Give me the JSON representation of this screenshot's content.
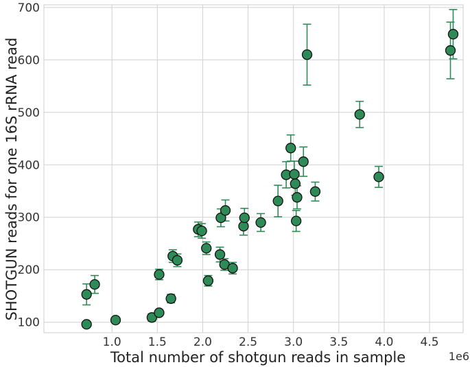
{
  "chart_data": {
    "type": "scatter",
    "title": "",
    "xlabel": "Total number of shotgun reads in sample",
    "ylabel": "SHOTGUN reads for one 16S rRNA read",
    "x_scale_label": "1e6",
    "xlim": [
      0.25,
      4.87
    ],
    "ylim": [
      80,
      705
    ],
    "x_ticks": [
      1.0,
      1.5,
      2.0,
      2.5,
      3.0,
      3.5,
      4.0,
      4.5
    ],
    "x_tick_labels": [
      "1.0",
      "1.5",
      "2.0",
      "2.5",
      "3.0",
      "3.5",
      "4.0",
      "4.5"
    ],
    "y_ticks": [
      100,
      200,
      300,
      400,
      500,
      600,
      700
    ],
    "y_tick_labels": [
      "100",
      "200",
      "300",
      "400",
      "500",
      "600",
      "700"
    ],
    "grid": true,
    "colors": {
      "marker_fill": "#2e8b57",
      "marker_edge": "#111111",
      "error_bar": "#2e8b57",
      "grid": "#d0d0d0"
    },
    "points": [
      {
        "x": 0.72,
        "y": 96,
        "err": 0
      },
      {
        "x": 0.72,
        "y": 153,
        "err": 20
      },
      {
        "x": 0.81,
        "y": 172,
        "err": 17
      },
      {
        "x": 1.04,
        "y": 104,
        "err": 0
      },
      {
        "x": 1.44,
        "y": 109,
        "err": 7
      },
      {
        "x": 1.52,
        "y": 118,
        "err": 0
      },
      {
        "x": 1.52,
        "y": 191,
        "err": 10
      },
      {
        "x": 1.65,
        "y": 145,
        "err": 8
      },
      {
        "x": 1.67,
        "y": 226,
        "err": 12
      },
      {
        "x": 1.72,
        "y": 218,
        "err": 12
      },
      {
        "x": 1.95,
        "y": 277,
        "err": 14
      },
      {
        "x": 1.99,
        "y": 274,
        "err": 14
      },
      {
        "x": 2.04,
        "y": 241,
        "err": 12
      },
      {
        "x": 2.06,
        "y": 179,
        "err": 10
      },
      {
        "x": 2.19,
        "y": 229,
        "err": 14
      },
      {
        "x": 2.2,
        "y": 299,
        "err": 17
      },
      {
        "x": 2.24,
        "y": 210,
        "err": 11
      },
      {
        "x": 2.25,
        "y": 313,
        "err": 20
      },
      {
        "x": 2.33,
        "y": 203,
        "err": 11
      },
      {
        "x": 2.45,
        "y": 283,
        "err": 17
      },
      {
        "x": 2.46,
        "y": 299,
        "err": 18
      },
      {
        "x": 2.64,
        "y": 290,
        "err": 17
      },
      {
        "x": 2.83,
        "y": 331,
        "err": 30
      },
      {
        "x": 2.92,
        "y": 381,
        "err": 25
      },
      {
        "x": 2.97,
        "y": 432,
        "err": 25
      },
      {
        "x": 3.01,
        "y": 382,
        "err": 25
      },
      {
        "x": 3.02,
        "y": 364,
        "err": 22
      },
      {
        "x": 3.03,
        "y": 293,
        "err": 20
      },
      {
        "x": 3.04,
        "y": 338,
        "err": 22
      },
      {
        "x": 3.11,
        "y": 406,
        "err": 28
      },
      {
        "x": 3.15,
        "y": 610,
        "err": 58
      },
      {
        "x": 3.24,
        "y": 349,
        "err": 18
      },
      {
        "x": 3.73,
        "y": 496,
        "err": 25
      },
      {
        "x": 3.94,
        "y": 377,
        "err": 20
      },
      {
        "x": 4.73,
        "y": 618,
        "err": 54
      },
      {
        "x": 4.76,
        "y": 649,
        "err": 47
      }
    ]
  }
}
